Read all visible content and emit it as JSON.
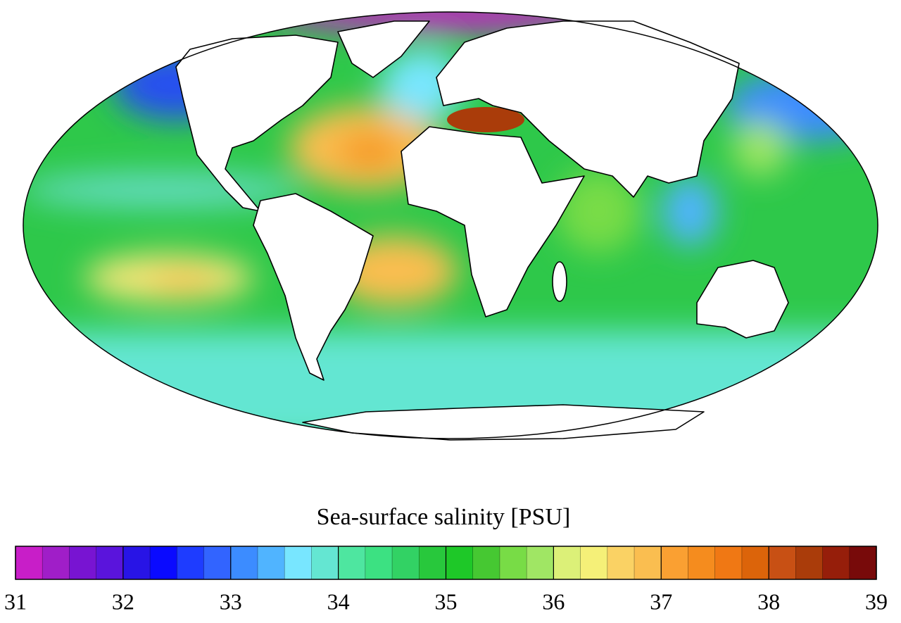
{
  "colorbar": {
    "title": "Sea-surface salinity [PSU]",
    "lim": [
      31,
      39
    ],
    "ticks": [
      31,
      32,
      33,
      34,
      35,
      36,
      37,
      38,
      39
    ],
    "colors": [
      "#c81ec8",
      "#a01ec8",
      "#7814d2",
      "#5a14dc",
      "#2814e6",
      "#0a0aff",
      "#1e3cff",
      "#3264ff",
      "#3c8cff",
      "#50b4ff",
      "#78e6ff",
      "#64e6d2",
      "#4ee6a0",
      "#3ce182",
      "#32d264",
      "#28c83c",
      "#1ec828",
      "#46c832",
      "#78dc46",
      "#a0e664",
      "#dcf078",
      "#f5f078",
      "#fad264",
      "#fabe50",
      "#faa032",
      "#f58c1e",
      "#f07814",
      "#dc640a",
      "#c85014",
      "#aa3c0a",
      "#961e0a",
      "#780a0a"
    ]
  }
}
